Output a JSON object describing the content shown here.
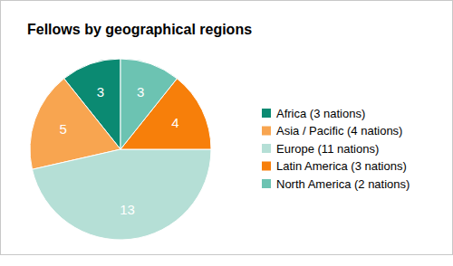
{
  "chart_data": {
    "type": "pie",
    "title": "Fellows by geographical regions",
    "categories": [
      "Africa (3 nations)",
      "Asia / Pacific (4 nations)",
      "Europe (11 nations)",
      "Latin America (3 nations)",
      "North America (2 nations)"
    ],
    "values": [
      3,
      5,
      13,
      4,
      3
    ],
    "colors": [
      "#0b8a72",
      "#f8a550",
      "#b5dfd6",
      "#f77f0a",
      "#6cc3b2"
    ],
    "data_labels": true,
    "legend": "right"
  }
}
